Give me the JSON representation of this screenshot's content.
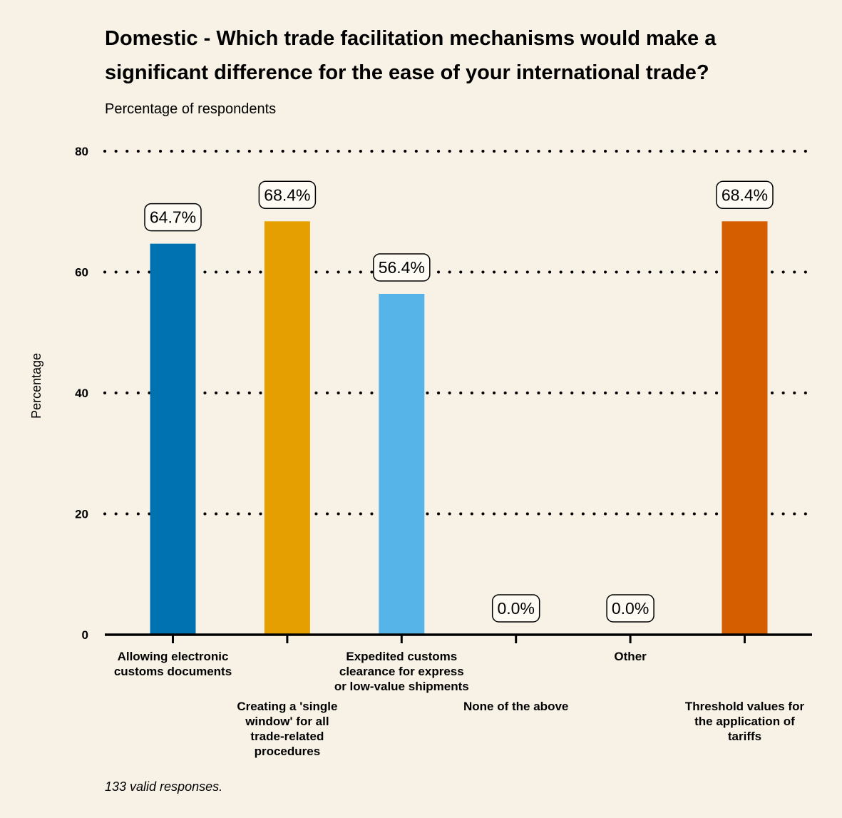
{
  "chart_data": {
    "type": "bar",
    "title_lines": [
      "Domestic - Which trade facilitation mechanisms would make a",
      "significant difference for the ease of your international trade?"
    ],
    "subtitle": "Percentage of respondents",
    "ylabel": "Percentage",
    "xlabel": "",
    "ylim": [
      0,
      80
    ],
    "yticks": [
      0,
      20,
      40,
      60,
      80
    ],
    "grid": "horizontal-dotted",
    "caption": "133 valid responses.",
    "categories": [
      [
        "Allowing electronic",
        "customs documents"
      ],
      [
        "Creating a 'single",
        "window' for all",
        "trade-related",
        "procedures"
      ],
      [
        "Expedited customs",
        "clearance for express",
        "or low-value shipments"
      ],
      [
        "None of the above"
      ],
      [
        "Other"
      ],
      [
        "Threshold values for",
        "the application of",
        "tariffs"
      ]
    ],
    "values": [
      64.7,
      68.4,
      56.4,
      0.0,
      0.0,
      68.4
    ],
    "value_labels": [
      "64.7%",
      "68.4%",
      "56.4%",
      "0.0%",
      "0.0%",
      "68.4%"
    ],
    "colors": [
      "#0072b2",
      "#e69f00",
      "#56b4e9",
      "#009e73",
      "#f0e442",
      "#d55e00"
    ]
  }
}
